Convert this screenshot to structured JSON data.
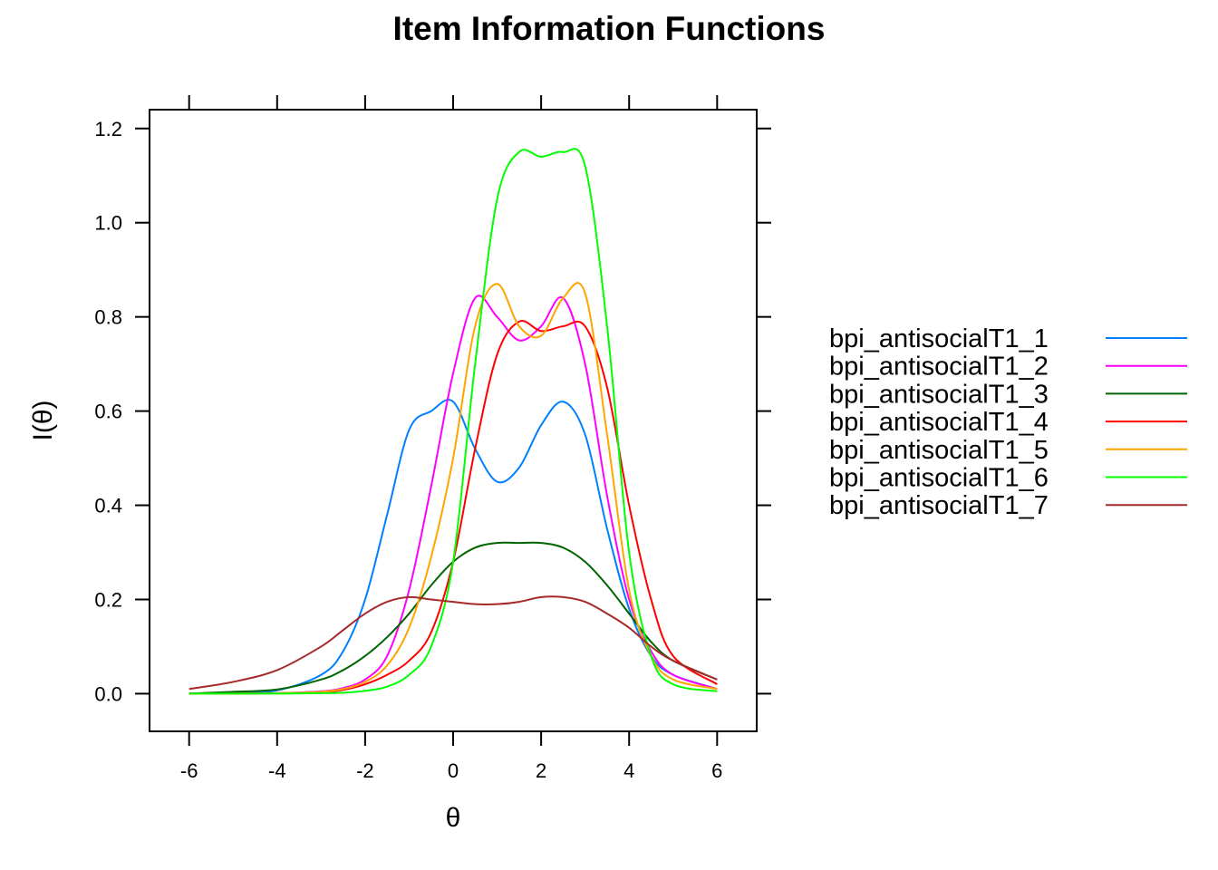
{
  "chart_data": {
    "type": "line",
    "title": "Item Information Functions",
    "xlabel": "θ",
    "ylabel": "I(θ)",
    "xlim": [
      -6.9,
      6.9
    ],
    "ylim": [
      -0.08,
      1.24
    ],
    "xticks": [
      -6,
      -4,
      -2,
      0,
      2,
      4,
      6
    ],
    "xtick_labels": [
      "-6",
      "-4",
      "-2",
      "0",
      "2",
      "4",
      "6"
    ],
    "yticks": [
      0.0,
      0.2,
      0.4,
      0.6,
      0.8,
      1.0,
      1.2
    ],
    "ytick_labels": [
      "0.0",
      "0.2",
      "0.4",
      "0.6",
      "0.8",
      "1.0",
      "1.2"
    ],
    "grid": false,
    "legend_position": "right",
    "x": [
      -6,
      -5,
      -4,
      -3,
      -2.5,
      -2,
      -1.5,
      -1,
      -0.5,
      0,
      0.5,
      1,
      1.5,
      2,
      2.5,
      3,
      3.5,
      4,
      4.5,
      5,
      6
    ],
    "series": [
      {
        "name": "bpi_antisocialT1_1",
        "color": "#0080FF",
        "values": [
          0.0,
          0.002,
          0.007,
          0.04,
          0.09,
          0.2,
          0.38,
          0.56,
          0.6,
          0.62,
          0.52,
          0.45,
          0.48,
          0.57,
          0.62,
          0.55,
          0.35,
          0.18,
          0.08,
          0.04,
          0.01
        ]
      },
      {
        "name": "bpi_antisocialT1_2",
        "color": "#FF00FF",
        "values": [
          0.0,
          0.0,
          0.001,
          0.005,
          0.012,
          0.03,
          0.08,
          0.22,
          0.44,
          0.68,
          0.84,
          0.8,
          0.75,
          0.78,
          0.84,
          0.7,
          0.42,
          0.2,
          0.09,
          0.04,
          0.01
        ]
      },
      {
        "name": "bpi_antisocialT1_3",
        "color": "#006400",
        "values": [
          0.0,
          0.004,
          0.009,
          0.03,
          0.05,
          0.08,
          0.12,
          0.17,
          0.23,
          0.28,
          0.31,
          0.32,
          0.32,
          0.32,
          0.31,
          0.28,
          0.23,
          0.17,
          0.11,
          0.07,
          0.03
        ]
      },
      {
        "name": "bpi_antisocialT1_4",
        "color": "#FF0000",
        "values": [
          0.0,
          0.0,
          0.001,
          0.003,
          0.008,
          0.02,
          0.04,
          0.07,
          0.13,
          0.28,
          0.52,
          0.72,
          0.79,
          0.77,
          0.78,
          0.78,
          0.65,
          0.4,
          0.2,
          0.08,
          0.02
        ]
      },
      {
        "name": "bpi_antisocialT1_5",
        "color": "#FFA500",
        "values": [
          0.0,
          0.0,
          0.001,
          0.004,
          0.01,
          0.025,
          0.06,
          0.14,
          0.29,
          0.5,
          0.78,
          0.87,
          0.78,
          0.76,
          0.84,
          0.85,
          0.55,
          0.22,
          0.08,
          0.03,
          0.01
        ]
      },
      {
        "name": "bpi_antisocialT1_6",
        "color": "#00FF00",
        "values": [
          0.0,
          0.0,
          0.0,
          0.001,
          0.002,
          0.006,
          0.015,
          0.04,
          0.1,
          0.28,
          0.7,
          1.05,
          1.15,
          1.14,
          1.15,
          1.12,
          0.78,
          0.3,
          0.08,
          0.02,
          0.005
        ]
      },
      {
        "name": "bpi_antisocialT1_7",
        "color": "#A52A2A",
        "values": [
          0.01,
          0.025,
          0.05,
          0.1,
          0.135,
          0.17,
          0.195,
          0.205,
          0.2,
          0.195,
          0.19,
          0.19,
          0.195,
          0.205,
          0.205,
          0.195,
          0.17,
          0.14,
          0.1,
          0.07,
          0.03
        ]
      }
    ]
  }
}
